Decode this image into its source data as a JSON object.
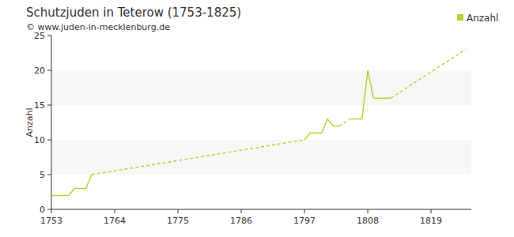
{
  "chart_data": {
    "type": "line",
    "title": "Schutzjuden in Teterow (1753-1825)",
    "subtitle": "© www.juden-in-mecklenburg.de",
    "y_label": "Anzahl",
    "x": [
      1753,
      1754,
      1755,
      1756,
      1757,
      1758,
      1759,
      1760,
      1797,
      1798,
      1799,
      1800,
      1801,
      1802,
      1803,
      1805,
      1806,
      1807,
      1808,
      1809,
      1810,
      1811,
      1812,
      1825
    ],
    "series": [
      {
        "name": "Anzahl",
        "color": "#b5d334",
        "values": [
          2,
          2,
          2,
          2,
          3,
          3,
          3,
          5,
          10,
          11,
          11,
          11,
          13,
          12,
          12,
          13,
          13,
          13,
          20,
          16,
          16,
          16,
          16,
          23
        ]
      }
    ],
    "xlim": [
      1753,
      1826
    ],
    "xticks": [
      1753,
      1764,
      1775,
      1786,
      1797,
      1808,
      1819
    ],
    "ylim": [
      0,
      25
    ],
    "yticks": [
      0,
      5,
      10,
      15,
      20,
      25
    ],
    "grid": true,
    "legend": "top-right"
  }
}
